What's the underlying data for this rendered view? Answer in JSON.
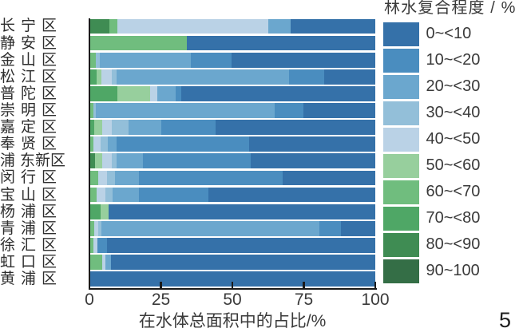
{
  "page": {
    "number": "5"
  },
  "chart_data": {
    "type": "bar",
    "orientation": "horizontal-stacked",
    "xlabel": "在水体总面积中的占比/%",
    "xlim": [
      0,
      100
    ],
    "xticks": [
      "0",
      "25",
      "50",
      "75",
      "100"
    ],
    "grid": false,
    "legend_position": "right",
    "legend_title": "林水复合程度 / %",
    "classes": [
      {
        "label": "0~<10",
        "color": "#3571a9"
      },
      {
        "label": "10~<20",
        "color": "#4a8dbf"
      },
      {
        "label": "20~<30",
        "color": "#6ba7ce"
      },
      {
        "label": "30~<40",
        "color": "#93bfd9"
      },
      {
        "label": "40~<50",
        "color": "#bad2e6"
      },
      {
        "label": "50~<60",
        "color": "#97cf9d"
      },
      {
        "label": "60~<70",
        "color": "#70bd7e"
      },
      {
        "label": "70~<80",
        "color": "#4fa766"
      },
      {
        "label": "80~<90",
        "color": "#3f8c53"
      },
      {
        "label": "90~100",
        "color": "#346e46"
      }
    ],
    "categories": [
      "长宁区",
      "静安区",
      "金山区",
      "松江区",
      "普陀区",
      "崇明区",
      "嘉定区",
      "奉贤区",
      "浦东新区",
      "闵行区",
      "宝山区",
      "杨浦区",
      "青浦区",
      "徐汇区",
      "虹口区",
      "黄浦区"
    ],
    "bars": [
      {
        "district": "长宁区",
        "segments": [
          {
            "cls": "80~<90",
            "value": 7.0
          },
          {
            "cls": "60~<70",
            "value": 2.8
          },
          {
            "cls": "40~<50",
            "value": 52.7
          },
          {
            "cls": "20~<30",
            "value": 8.0
          },
          {
            "cls": "0~<10",
            "value": 29.5
          }
        ]
      },
      {
        "district": "静安区",
        "segments": [
          {
            "cls": "60~<70",
            "value": 34.0
          },
          {
            "cls": "0~<10",
            "value": 66.0
          }
        ]
      },
      {
        "district": "金山区",
        "segments": [
          {
            "cls": "60~<70",
            "value": 2.1
          },
          {
            "cls": "30~<40",
            "value": 1.5
          },
          {
            "cls": "20~<30",
            "value": 31.8
          },
          {
            "cls": "10~<20",
            "value": 14.3
          },
          {
            "cls": "0~<10",
            "value": 50.3
          }
        ]
      },
      {
        "district": "松江区",
        "segments": [
          {
            "cls": "70~<80",
            "value": 2.6
          },
          {
            "cls": "50~<60",
            "value": 1.7
          },
          {
            "cls": "40~<50",
            "value": 3.5
          },
          {
            "cls": "30~<40",
            "value": 1.7
          },
          {
            "cls": "20~<30",
            "value": 60.3
          },
          {
            "cls": "10~<20",
            "value": 12.2
          },
          {
            "cls": "0~<10",
            "value": 18.0
          }
        ]
      },
      {
        "district": "普陀区",
        "segments": [
          {
            "cls": "70~<80",
            "value": 9.9
          },
          {
            "cls": "50~<60",
            "value": 11.3
          },
          {
            "cls": "40~<50",
            "value": 2.5
          },
          {
            "cls": "20~<30",
            "value": 6.4
          },
          {
            "cls": "10~<20",
            "value": 2.0
          },
          {
            "cls": "0~<10",
            "value": 67.9
          }
        ]
      },
      {
        "district": "崇明区",
        "segments": [
          {
            "cls": "60~<70",
            "value": 1.5
          },
          {
            "cls": "30~<40",
            "value": 0.8
          },
          {
            "cls": "20~<30",
            "value": 62.5
          },
          {
            "cls": "10~<20",
            "value": 10.2
          },
          {
            "cls": "0~<10",
            "value": 25.0
          }
        ]
      },
      {
        "district": "嘉定区",
        "segments": [
          {
            "cls": "70~<80",
            "value": 1.7
          },
          {
            "cls": "50~<60",
            "value": 2.8
          },
          {
            "cls": "40~<50",
            "value": 3.4
          },
          {
            "cls": "30~<40",
            "value": 5.9
          },
          {
            "cls": "20~<30",
            "value": 11.3
          },
          {
            "cls": "10~<20",
            "value": 19.1
          },
          {
            "cls": "0~<10",
            "value": 55.8
          }
        ]
      },
      {
        "district": "奉贤区",
        "segments": [
          {
            "cls": "60~<70",
            "value": 1.5
          },
          {
            "cls": "40~<50",
            "value": 2.5
          },
          {
            "cls": "30~<40",
            "value": 2.5
          },
          {
            "cls": "20~<30",
            "value": 2.9
          },
          {
            "cls": "10~<20",
            "value": 46.6
          },
          {
            "cls": "0~<10",
            "value": 44.0
          }
        ]
      },
      {
        "district": "浦东新区",
        "segments": [
          {
            "cls": "80~<90",
            "value": 2.0
          },
          {
            "cls": "50~<60",
            "value": 2.5
          },
          {
            "cls": "40~<50",
            "value": 3.4
          },
          {
            "cls": "30~<40",
            "value": 1.7
          },
          {
            "cls": "20~<30",
            "value": 9.2
          },
          {
            "cls": "10~<20",
            "value": 37.7
          },
          {
            "cls": "0~<10",
            "value": 43.5
          }
        ]
      },
      {
        "district": "闵行区",
        "segments": [
          {
            "cls": "60~<70",
            "value": 3.2
          },
          {
            "cls": "40~<50",
            "value": 2.9
          },
          {
            "cls": "30~<40",
            "value": 2.9
          },
          {
            "cls": "20~<30",
            "value": 8.4
          },
          {
            "cls": "10~<20",
            "value": 50.3
          },
          {
            "cls": "0~<10",
            "value": 32.3
          }
        ]
      },
      {
        "district": "宝山区",
        "segments": [
          {
            "cls": "60~<70",
            "value": 2.5
          },
          {
            "cls": "40~<50",
            "value": 3.2
          },
          {
            "cls": "30~<40",
            "value": 2.5
          },
          {
            "cls": "20~<30",
            "value": 9.2
          },
          {
            "cls": "10~<20",
            "value": 24.1
          },
          {
            "cls": "0~<10",
            "value": 58.5
          }
        ]
      },
      {
        "district": "杨浦区",
        "segments": [
          {
            "cls": "70~<80",
            "value": 3.8
          },
          {
            "cls": "50~<60",
            "value": 2.9
          },
          {
            "cls": "0~<10",
            "value": 93.3
          }
        ]
      },
      {
        "district": "青浦区",
        "segments": [
          {
            "cls": "60~<70",
            "value": 1.7
          },
          {
            "cls": "40~<50",
            "value": 1.3
          },
          {
            "cls": "30~<40",
            "value": 1.3
          },
          {
            "cls": "20~<30",
            "value": 76.1
          },
          {
            "cls": "10~<20",
            "value": 7.7
          },
          {
            "cls": "0~<10",
            "value": 11.9
          }
        ]
      },
      {
        "district": "徐汇区",
        "segments": [
          {
            "cls": "60~<70",
            "value": 1.5
          },
          {
            "cls": "40~<50",
            "value": 1.2
          },
          {
            "cls": "10~<20",
            "value": 3.5
          },
          {
            "cls": "0~<10",
            "value": 93.8
          }
        ]
      },
      {
        "district": "虹口区",
        "segments": [
          {
            "cls": "60~<70",
            "value": 4.5
          },
          {
            "cls": "40~<50",
            "value": 1.2
          },
          {
            "cls": "20~<30",
            "value": 1.9
          },
          {
            "cls": "0~<10",
            "value": 92.4
          }
        ]
      },
      {
        "district": "黄浦区",
        "segments": [
          {
            "cls": "0~<10",
            "value": 100.0
          }
        ]
      }
    ]
  }
}
